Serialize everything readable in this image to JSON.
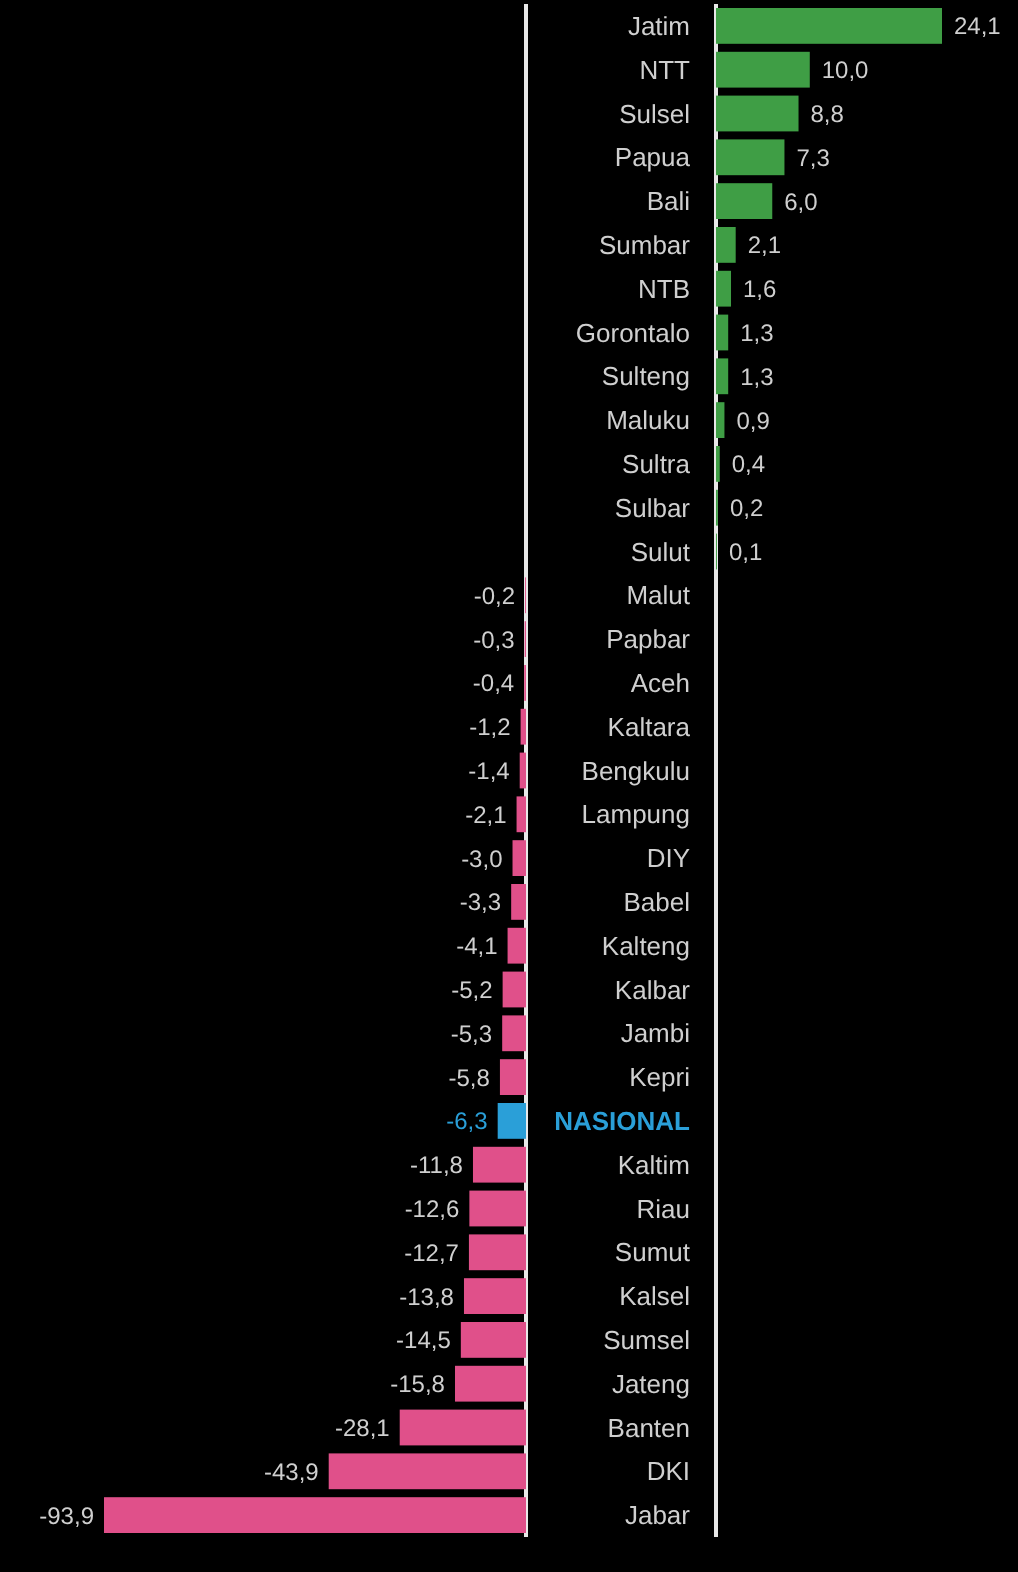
{
  "chart_data": [
    {
      "type": "bar",
      "orientation": "horizontal",
      "categories": [
        "Jatim",
        "NTT",
        "Sulsel",
        "Papua",
        "Bali",
        "Sumbar",
        "NTB",
        "Gorontalo",
        "Sulteng",
        "Maluku",
        "Sultra",
        "Sulbar",
        "Sulut"
      ],
      "color": "#3f9e45",
      "values": [
        24.1,
        10.0,
        8.8,
        7.3,
        6.0,
        2.1,
        1.6,
        1.3,
        1.3,
        0.9,
        0.4,
        0.2,
        0.1
      ],
      "value_labels": [
        "24,1",
        "10,0",
        "8,8",
        "7,3",
        "6,0",
        "2,1",
        "1,6",
        "1,3",
        "1,3",
        "0,9",
        "0,4",
        "0,2",
        "0,1"
      ]
    },
    {
      "type": "bar",
      "orientation": "horizontal",
      "categories": [
        "Malut",
        "Papbar",
        "Aceh",
        "Kaltara",
        "Bengkulu",
        "Lampung",
        "DIY",
        "Babel",
        "Kalteng",
        "Kalbar",
        "Jambi",
        "Kepri",
        "NASIONAL",
        "Kaltim",
        "Riau",
        "Sumut",
        "Kalsel",
        "Sumsel",
        "Jateng",
        "Banten",
        "DKI",
        "Jabar"
      ],
      "color": "#e0508a",
      "colors": [
        "#e0508a",
        "#e0508a",
        "#e0508a",
        "#e0508a",
        "#e0508a",
        "#e0508a",
        "#e0508a",
        "#e0508a",
        "#e0508a",
        "#e0508a",
        "#e0508a",
        "#e0508a",
        "#2a9fd8",
        "#e0508a",
        "#e0508a",
        "#e0508a",
        "#e0508a",
        "#e0508a",
        "#e0508a",
        "#e0508a",
        "#e0508a",
        "#e0508a"
      ],
      "values": [
        -0.2,
        -0.3,
        -0.4,
        -1.2,
        -1.4,
        -2.1,
        -3.0,
        -3.3,
        -4.1,
        -5.2,
        -5.3,
        -5.8,
        -6.3,
        -11.8,
        -12.6,
        -12.7,
        -13.8,
        -14.5,
        -15.8,
        -28.1,
        -43.9,
        -93.9
      ],
      "value_labels": [
        "-0,2",
        "-0,3",
        "-0,4",
        "-1,2",
        "-1,4",
        "-2,1",
        "-3,0",
        "-3,3",
        "-4,1",
        "-5,2",
        "-5,3",
        "-5,8",
        "-6,3",
        "-11,8",
        "-12,6",
        "-12,7",
        "-13,8",
        "-14,5",
        "-15,8",
        "-28,1",
        "-43,9",
        "-93,9"
      ]
    }
  ]
}
